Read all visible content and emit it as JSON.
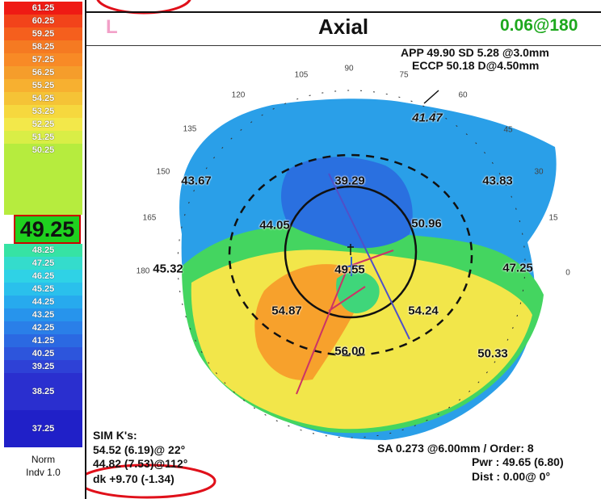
{
  "scale": {
    "values": [
      "61.25",
      "60.25",
      "59.25",
      "58.25",
      "57.25",
      "56.25",
      "55.25",
      "54.25",
      "53.25",
      "52.25",
      "51.25",
      "50.25",
      "49.25",
      "48.25",
      "47.25",
      "46.25",
      "45.25",
      "44.25",
      "43.25",
      "42.25",
      "41.25",
      "40.25",
      "39.25",
      "38.25",
      "37.25"
    ],
    "colors": [
      "#ef1a14",
      "#f2431a",
      "#f55f1d",
      "#f57a22",
      "#f88a26",
      "#f59d2b",
      "#f7b030",
      "#f5c336",
      "#f6d83e",
      "#f3e84a",
      "#d9ee46",
      "#b6ec3e",
      "#3fe05a",
      "#36e3a4",
      "#34dccc",
      "#2fd2e6",
      "#2ac0ec",
      "#27aaee",
      "#2794ec",
      "#2a7fe8",
      "#2b69e2",
      "#2d55dc",
      "#2e41d6",
      "#2a2fcf",
      "#2020c8"
    ],
    "current_value": "49.25",
    "legend_line1": "Norm",
    "legend_line2": "Indv 1.0"
  },
  "header": {
    "eye": "L",
    "title": "Axial",
    "astig_value": "0.06@180"
  },
  "info_top": {
    "line1": "APP 49.90 SD 5.28  @3.0mm",
    "line2": "ECCP 50.18 D@4.50mm"
  },
  "map": {
    "keratometry_values": [
      "41.47",
      "43.67",
      "39.29",
      "43.83",
      "44.05",
      "50.96",
      "45.32",
      "49.55",
      "47.25",
      "54.87",
      "54.24",
      "56.00",
      "50.33"
    ],
    "angle_labels": [
      "90",
      "105",
      "75",
      "120",
      "60",
      "135",
      "45",
      "150",
      "30",
      "165",
      "15",
      "180",
      "0"
    ]
  },
  "sim_k": {
    "label": "SIM K's:",
    "k1": "54.52 (6.19)@ 22°",
    "k2": "44.82 (7.53)@112°",
    "dk": "dk +9.70 (-1.34)"
  },
  "info_bottom": {
    "sa": "SA  0.273 @6.00mm / Order: 8",
    "pwr": "Pwr :  49.65 (6.80)",
    "dist": "Dist :  0.00@  0°"
  },
  "colors": {
    "annotation_circle": "#e0101a",
    "astig_text": "#1ea81e",
    "eye_label": "#f2a0c8"
  }
}
